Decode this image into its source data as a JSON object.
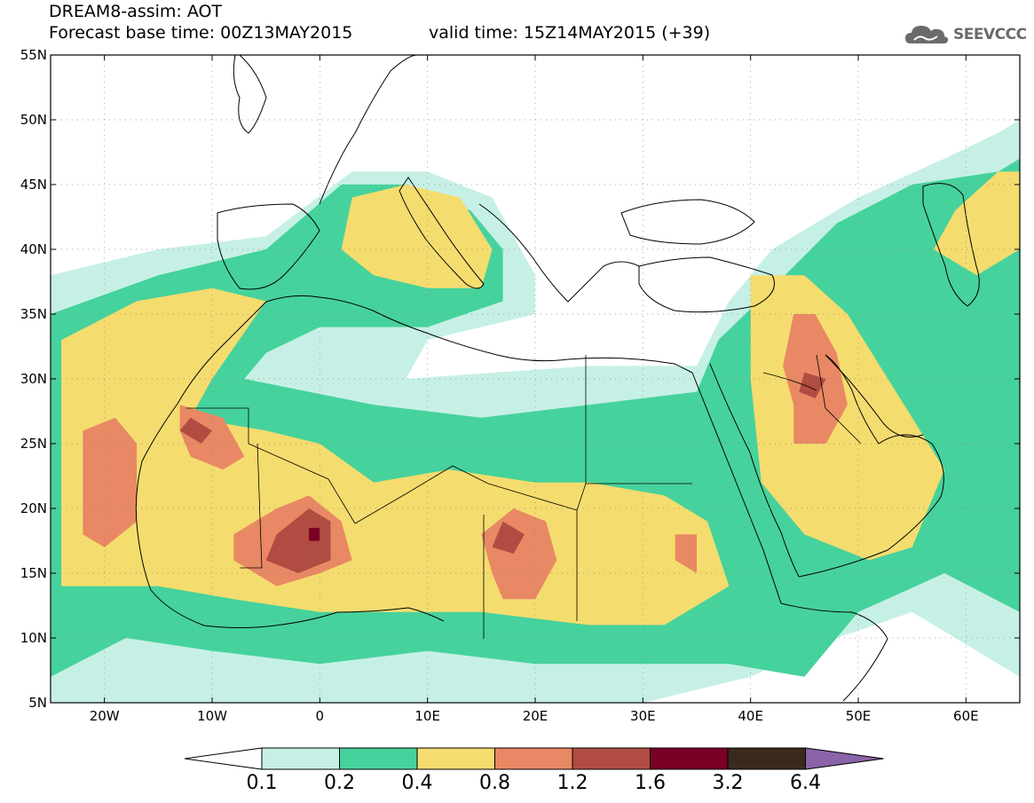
{
  "header": {
    "title": "DREAM8-assim: AOT",
    "base_time": "Forecast base time: 00Z13MAY2015",
    "valid_time": "valid time: 15Z14MAY2015 (+39)",
    "logo_text": "SEEVCCC"
  },
  "map": {
    "lon_range": [
      -25,
      65
    ],
    "lat_range": [
      5,
      55
    ],
    "lat_ticks": [
      {
        "value": 55,
        "label": "55N"
      },
      {
        "value": 50,
        "label": "50N"
      },
      {
        "value": 45,
        "label": "45N"
      },
      {
        "value": 40,
        "label": "40N"
      },
      {
        "value": 35,
        "label": "35N"
      },
      {
        "value": 30,
        "label": "30N"
      },
      {
        "value": 25,
        "label": "25N"
      },
      {
        "value": 20,
        "label": "20N"
      },
      {
        "value": 15,
        "label": "15N"
      },
      {
        "value": 10,
        "label": "10N"
      },
      {
        "value": 5,
        "label": "5N"
      }
    ],
    "lon_ticks": [
      {
        "value": -20,
        "label": "20W"
      },
      {
        "value": -10,
        "label": "10W"
      },
      {
        "value": 0,
        "label": "0"
      },
      {
        "value": 10,
        "label": "10E"
      },
      {
        "value": 20,
        "label": "20E"
      },
      {
        "value": 30,
        "label": "30E"
      },
      {
        "value": 40,
        "label": "40E"
      },
      {
        "value": 50,
        "label": "50E"
      },
      {
        "value": 60,
        "label": "60E"
      }
    ],
    "grid": "dotted"
  },
  "colorbar": {
    "labels": [
      "0.1",
      "0.2",
      "0.4",
      "0.8",
      "1.2",
      "1.6",
      "3.2",
      "6.4"
    ],
    "colors": [
      "#c6f0e6",
      "#46d29c",
      "#f5dc6e",
      "#e88864",
      "#b04c42",
      "#7a0026",
      "#3a2a1e",
      "#8a63a8"
    ]
  },
  "chart_data": {
    "type": "heatmap",
    "variable": "AOT",
    "levels": [
      0.1,
      0.2,
      0.4,
      0.8,
      1.2,
      1.6,
      3.2,
      6.4
    ],
    "regions": [
      {
        "level": 0.1,
        "polygon": [
          [
            -25,
            5
          ],
          [
            -25,
            38
          ],
          [
            -15,
            40
          ],
          [
            -5,
            41
          ],
          [
            3,
            46
          ],
          [
            10,
            46
          ],
          [
            16,
            44
          ],
          [
            20,
            38
          ],
          [
            20,
            35
          ],
          [
            10,
            33
          ],
          [
            8,
            30
          ],
          [
            25,
            31
          ],
          [
            35,
            31
          ],
          [
            38,
            36
          ],
          [
            42,
            40
          ],
          [
            50,
            44
          ],
          [
            58,
            47
          ],
          [
            63,
            49
          ],
          [
            65,
            50
          ],
          [
            65,
            7
          ],
          [
            55,
            12
          ],
          [
            48,
            10
          ],
          [
            40,
            7
          ],
          [
            30,
            5
          ]
        ]
      },
      {
        "level": 0.2,
        "polygon": [
          [
            -25,
            7
          ],
          [
            -25,
            35
          ],
          [
            -15,
            38
          ],
          [
            -5,
            40
          ],
          [
            2,
            45
          ],
          [
            8,
            45
          ],
          [
            14,
            43
          ],
          [
            17,
            40
          ],
          [
            17,
            36
          ],
          [
            10,
            34
          ],
          [
            0,
            34
          ],
          [
            -5,
            32
          ],
          [
            -7,
            30
          ],
          [
            5,
            28
          ],
          [
            15,
            27
          ],
          [
            25,
            28
          ],
          [
            35,
            29
          ],
          [
            37,
            33
          ],
          [
            42,
            37
          ],
          [
            48,
            42
          ],
          [
            55,
            45
          ],
          [
            63,
            46
          ],
          [
            65,
            47
          ],
          [
            65,
            12
          ],
          [
            58,
            15
          ],
          [
            50,
            12
          ],
          [
            45,
            7
          ],
          [
            38,
            8
          ],
          [
            30,
            8
          ],
          [
            20,
            8
          ],
          [
            10,
            9
          ],
          [
            0,
            8
          ],
          [
            -10,
            9
          ],
          [
            -18,
            10
          ]
        ]
      },
      {
        "level": 0.4,
        "polygon": [
          [
            -24,
            14
          ],
          [
            -24,
            33
          ],
          [
            -17,
            36
          ],
          [
            -10,
            37
          ],
          [
            -5,
            36
          ],
          [
            -10,
            30
          ],
          [
            -12,
            27
          ],
          [
            -5,
            26
          ],
          [
            0,
            25
          ],
          [
            5,
            22
          ],
          [
            12,
            23
          ],
          [
            20,
            22
          ],
          [
            25,
            22
          ],
          [
            32,
            21
          ],
          [
            36,
            19
          ],
          [
            38,
            14
          ],
          [
            32,
            11
          ],
          [
            25,
            11
          ],
          [
            15,
            12
          ],
          [
            8,
            12
          ],
          [
            0,
            12
          ],
          [
            -8,
            13
          ],
          [
            -15,
            14
          ]
        ]
      },
      {
        "level": 0.4,
        "polygon": [
          [
            2,
            40
          ],
          [
            3,
            44
          ],
          [
            8,
            45
          ],
          [
            13,
            44
          ],
          [
            16,
            40
          ],
          [
            15,
            37
          ],
          [
            10,
            37
          ],
          [
            5,
            38
          ]
        ]
      },
      {
        "level": 0.4,
        "polygon": [
          [
            40,
            38
          ],
          [
            40,
            30
          ],
          [
            41,
            22
          ],
          [
            45,
            18
          ],
          [
            51,
            16
          ],
          [
            55,
            17
          ],
          [
            58,
            23
          ],
          [
            55,
            27
          ],
          [
            52,
            31
          ],
          [
            49,
            35
          ],
          [
            45,
            38
          ]
        ]
      },
      {
        "level": 0.4,
        "polygon": [
          [
            57,
            40
          ],
          [
            59,
            43
          ],
          [
            63,
            46
          ],
          [
            65,
            46
          ],
          [
            65,
            40
          ],
          [
            61,
            38
          ]
        ]
      },
      {
        "level": 0.8,
        "polygon": [
          [
            -22,
            18
          ],
          [
            -22,
            26
          ],
          [
            -19,
            27
          ],
          [
            -17,
            25
          ],
          [
            -17,
            19
          ],
          [
            -20,
            17
          ]
        ]
      },
      {
        "level": 0.8,
        "polygon": [
          [
            -13,
            26
          ],
          [
            -13,
            28
          ],
          [
            -9,
            27
          ],
          [
            -7,
            24
          ],
          [
            -9,
            23
          ],
          [
            -12,
            24
          ]
        ]
      },
      {
        "level": 0.8,
        "polygon": [
          [
            -8,
            16
          ],
          [
            -8,
            18
          ],
          [
            -4,
            20
          ],
          [
            -1,
            21
          ],
          [
            2,
            19
          ],
          [
            3,
            16
          ],
          [
            0,
            15
          ],
          [
            -4,
            14
          ]
        ]
      },
      {
        "level": 0.8,
        "polygon": [
          [
            16,
            15
          ],
          [
            15,
            18
          ],
          [
            18,
            20
          ],
          [
            21,
            19
          ],
          [
            22,
            16
          ],
          [
            20,
            13
          ],
          [
            17,
            13
          ]
        ]
      },
      {
        "level": 0.8,
        "polygon": [
          [
            33,
            16
          ],
          [
            33,
            18
          ],
          [
            35,
            18
          ],
          [
            35,
            15
          ]
        ]
      },
      {
        "level": 0.8,
        "polygon": [
          [
            43,
            31
          ],
          [
            44,
            35
          ],
          [
            46,
            35
          ],
          [
            48,
            32
          ],
          [
            49,
            28
          ],
          [
            47,
            25
          ],
          [
            44,
            25
          ],
          [
            44,
            28
          ]
        ]
      },
      {
        "level": 1.2,
        "polygon": [
          [
            -13,
            26
          ],
          [
            -12,
            27
          ],
          [
            -10,
            26
          ],
          [
            -11,
            25
          ]
        ]
      },
      {
        "level": 1.2,
        "polygon": [
          [
            -5,
            16
          ],
          [
            -4,
            18
          ],
          [
            -1,
            20
          ],
          [
            1,
            19
          ],
          [
            1,
            16
          ],
          [
            -2,
            15
          ]
        ]
      },
      {
        "level": 1.2,
        "polygon": [
          [
            16,
            17
          ],
          [
            17,
            19
          ],
          [
            19,
            18
          ],
          [
            18,
            16.5
          ]
        ]
      },
      {
        "level": 1.2,
        "polygon": [
          [
            44.5,
            29
          ],
          [
            45,
            30.5
          ],
          [
            47,
            30
          ],
          [
            46,
            28.5
          ]
        ]
      },
      {
        "level": 1.6,
        "polygon": [
          [
            -1,
            17.5
          ],
          [
            -1,
            18.5
          ],
          [
            0,
            18.5
          ],
          [
            0,
            17.5
          ]
        ]
      }
    ]
  }
}
